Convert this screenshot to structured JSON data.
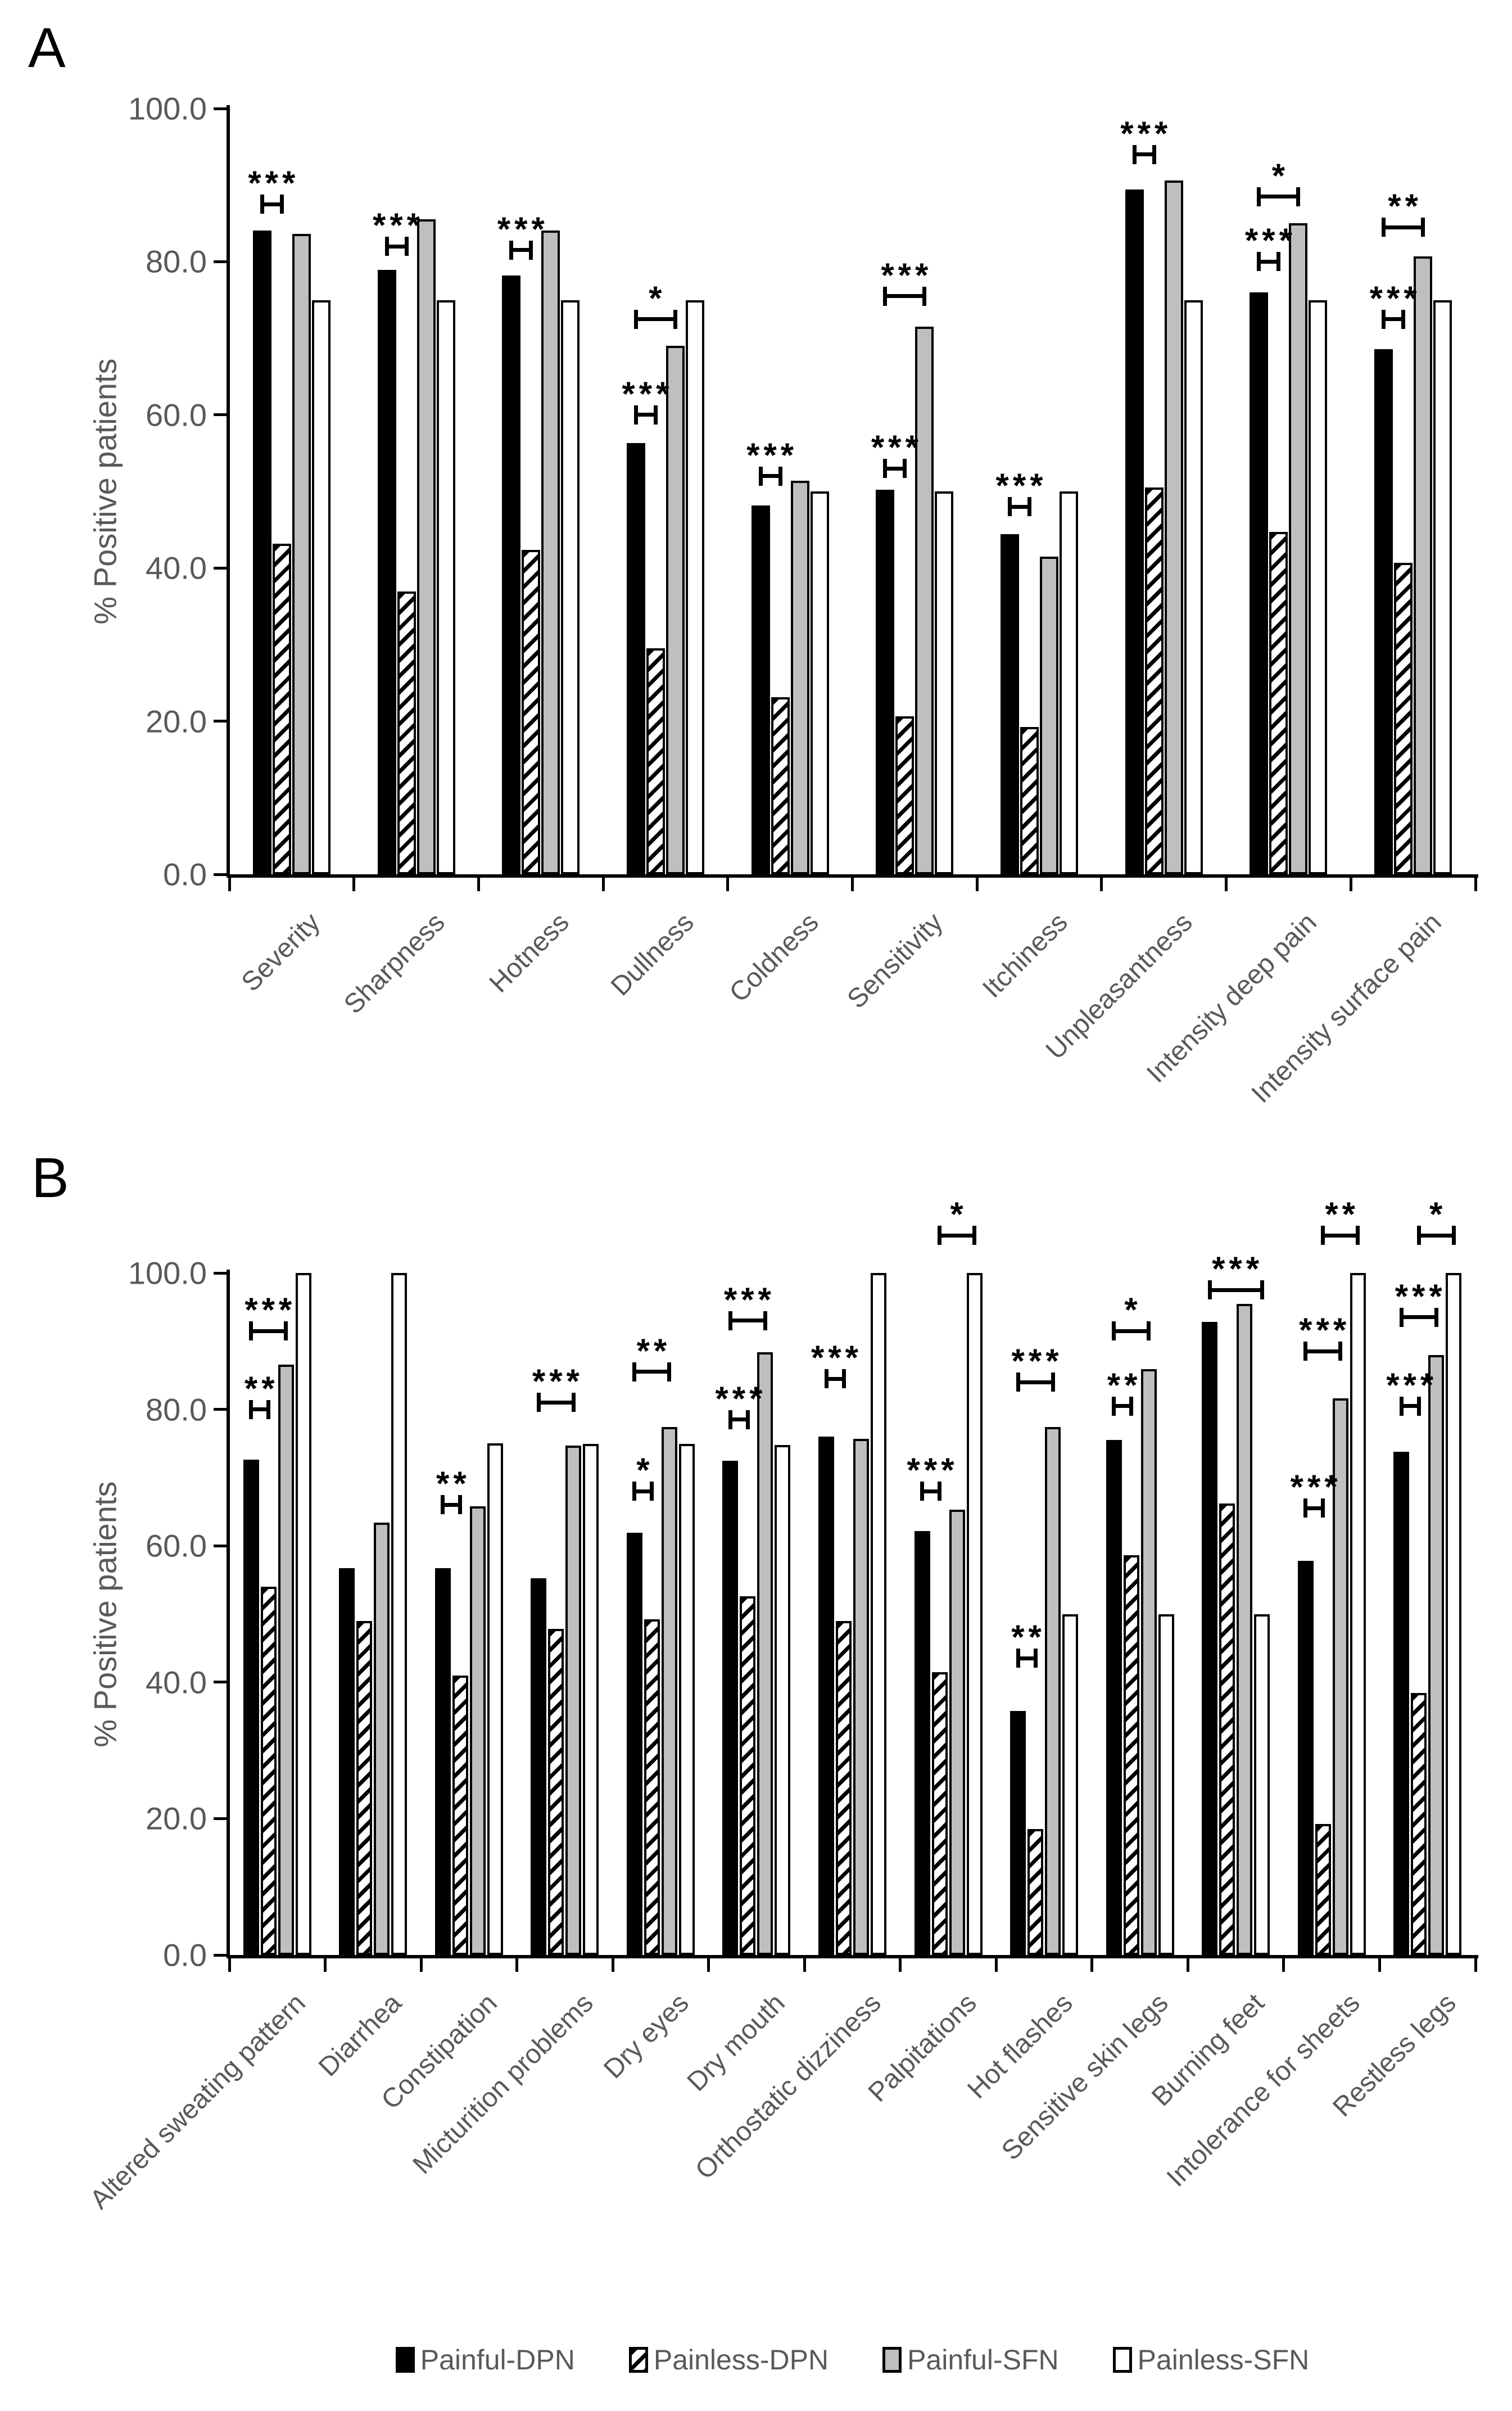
{
  "page": {
    "background": "#ffffff"
  },
  "colors": {
    "axis_text": "#595959",
    "bar_gray": "#bfbfbf",
    "bar_black": "#000000",
    "annotation": "#000000"
  },
  "legend": {
    "items": [
      {
        "label": "Painful-DPN",
        "swatch": "black"
      },
      {
        "label": "Painless-DPN",
        "swatch": "hatched"
      },
      {
        "label": "Painful-SFN",
        "swatch": "gray"
      },
      {
        "label": "Painless-SFN",
        "swatch": "white"
      }
    ]
  },
  "chart_data": [
    {
      "type": "bar",
      "panel_label": "A",
      "title": "",
      "xlabel": "",
      "ylabel": "% Positive patients",
      "ylim": [
        0,
        100
      ],
      "grid": false,
      "yticks": [
        {
          "value": 0,
          "label": "0.0"
        },
        {
          "value": 20,
          "label": "20.0"
        },
        {
          "value": 40,
          "label": "40.0"
        },
        {
          "value": 60,
          "label": "60.0"
        },
        {
          "value": 80,
          "label": "80.0"
        },
        {
          "value": 100,
          "label": "100.0"
        }
      ],
      "series": [
        "Painful-DPN",
        "Painless-DPN",
        "Painful-SFN",
        "Painless-SFN"
      ],
      "categories": [
        "Severity",
        "Sharpness",
        "Hotness",
        "Dullness",
        "Coldness",
        "Sensitivity",
        "Itchiness",
        "Unpleasantness",
        "Intensity deep pain",
        "Intensity surface pain"
      ],
      "values": [
        [
          84.1,
          43.2,
          83.6,
          75.0
        ],
        [
          78.9,
          36.9,
          85.5,
          75.0
        ],
        [
          78.2,
          42.4,
          84.1,
          75.0
        ],
        [
          56.3,
          29.5,
          69.0,
          75.0
        ],
        [
          48.2,
          23.1,
          51.4,
          50.0
        ],
        [
          50.2,
          20.6,
          71.5,
          50.0
        ],
        [
          44.4,
          19.2,
          41.5,
          50.0
        ],
        [
          89.4,
          50.5,
          90.6,
          75.0
        ],
        [
          76.0,
          44.7,
          85.0,
          75.0
        ],
        [
          68.6,
          40.7,
          80.7,
          75.0
        ]
      ],
      "significance": [
        {
          "category": "Severity",
          "pair": [
            0,
            1
          ],
          "label": "***",
          "y": 87.5
        },
        {
          "category": "Sharpness",
          "pair": [
            0,
            1
          ],
          "label": "***",
          "y": 82.0
        },
        {
          "category": "Hotness",
          "pair": [
            0,
            1
          ],
          "label": "***",
          "y": 81.5
        },
        {
          "category": "Dullness",
          "pair": [
            0,
            1
          ],
          "label": "***",
          "y": 60.0
        },
        {
          "category": "Dullness",
          "pair": [
            0,
            2
          ],
          "label": "*",
          "y": 72.5
        },
        {
          "category": "Coldness",
          "pair": [
            0,
            1
          ],
          "label": "***",
          "y": 52.0
        },
        {
          "category": "Sensitivity",
          "pair": [
            0,
            1
          ],
          "label": "***",
          "y": 53.0
        },
        {
          "category": "Sensitivity",
          "pair": [
            0,
            2
          ],
          "label": "***",
          "y": 75.5
        },
        {
          "category": "Itchiness",
          "pair": [
            0,
            1
          ],
          "label": "***",
          "y": 48.0
        },
        {
          "category": "Unpleasantness",
          "pair": [
            0,
            1
          ],
          "label": "***",
          "y": 94.0
        },
        {
          "category": "Intensity deep pain",
          "pair": [
            0,
            1
          ],
          "label": "***",
          "y": 80.0
        },
        {
          "category": "Intensity deep pain",
          "pair": [
            0,
            2
          ],
          "label": "*",
          "y": 88.5
        },
        {
          "category": "Intensity surface pain",
          "pair": [
            0,
            1
          ],
          "label": "***",
          "y": 72.5
        },
        {
          "category": "Intensity surface pain",
          "pair": [
            0,
            2
          ],
          "label": "**",
          "y": 84.5
        }
      ]
    },
    {
      "type": "bar",
      "panel_label": "B",
      "title": "",
      "xlabel": "",
      "ylabel": "% Positive patients",
      "ylim": [
        0,
        100
      ],
      "grid": false,
      "yticks": [
        {
          "value": 0,
          "label": "0.0"
        },
        {
          "value": 20,
          "label": "20.0"
        },
        {
          "value": 40,
          "label": "40.0"
        },
        {
          "value": 60,
          "label": "60.0"
        },
        {
          "value": 80,
          "label": "80.0"
        },
        {
          "value": 100,
          "label": "100.0"
        }
      ],
      "series": [
        "Painful-DPN",
        "Painless-DPN",
        "Painful-SFN",
        "Painless-SFN"
      ],
      "categories": [
        "Altered sweating pattern",
        "Diarrhea",
        "Constipation",
        "Micturition problems",
        "Dry eyes",
        "Dry mouth",
        "Orthostatic dizziness",
        "Palpitations",
        "Hot flashes",
        "Sensitive skin legs",
        "Burning feet",
        "Intolerance for sheets",
        "Restless legs"
      ],
      "values": [
        [
          72.6,
          54.0,
          86.6,
          100.0
        ],
        [
          56.7,
          49.0,
          63.4,
          100.0
        ],
        [
          56.7,
          41.0,
          65.8,
          75.0
        ],
        [
          55.2,
          47.8,
          74.7,
          74.9
        ],
        [
          61.9,
          49.2,
          77.4,
          74.9
        ],
        [
          72.5,
          52.6,
          88.4,
          74.8
        ],
        [
          76.0,
          49.0,
          75.7,
          100.0
        ],
        [
          62.2,
          41.5,
          65.3,
          100.0
        ],
        [
          35.8,
          18.5,
          77.4,
          50.0
        ],
        [
          75.5,
          58.6,
          85.9,
          50.0
        ],
        [
          92.8,
          66.2,
          95.5,
          50.0
        ],
        [
          57.8,
          19.2,
          81.6,
          100.0
        ],
        [
          73.8,
          38.4,
          88.0,
          100.0
        ]
      ],
      "significance": [
        {
          "category": "Altered sweating pattern",
          "pair": [
            0,
            1
          ],
          "label": "**",
          "y": 80.0
        },
        {
          "category": "Altered sweating pattern",
          "pair": [
            0,
            2
          ],
          "label": "***",
          "y": 91.5
        },
        {
          "category": "Constipation",
          "pair": [
            0,
            1
          ],
          "label": "**",
          "y": 66.0
        },
        {
          "category": "Micturition problems",
          "pair": [
            0,
            2
          ],
          "label": "***",
          "y": 81.0
        },
        {
          "category": "Dry eyes",
          "pair": [
            0,
            1
          ],
          "label": "*",
          "y": 68.0
        },
        {
          "category": "Dry eyes",
          "pair": [
            0,
            2
          ],
          "label": "**",
          "y": 85.5
        },
        {
          "category": "Dry mouth",
          "pair": [
            0,
            1
          ],
          "label": "***",
          "y": 78.5
        },
        {
          "category": "Dry mouth",
          "pair": [
            0,
            2
          ],
          "label": "***",
          "y": 93.0
        },
        {
          "category": "Orthostatic dizziness",
          "pair": [
            0,
            1
          ],
          "label": "***",
          "y": 84.5
        },
        {
          "category": "Palpitations",
          "pair": [
            0,
            1
          ],
          "label": "***",
          "y": 68.0
        },
        {
          "category": "Palpitations",
          "pair": [
            1,
            3
          ],
          "label": "*",
          "y": 105.5
        },
        {
          "category": "Hot flashes",
          "pair": [
            0,
            1
          ],
          "label": "**",
          "y": 43.5
        },
        {
          "category": "Hot flashes",
          "pair": [
            0,
            2
          ],
          "label": "***",
          "y": 84.0
        },
        {
          "category": "Sensitive skin legs",
          "pair": [
            0,
            1
          ],
          "label": "**",
          "y": 80.5
        },
        {
          "category": "Sensitive skin legs",
          "pair": [
            0,
            2
          ],
          "label": "*",
          "y": 91.5
        },
        {
          "category": "Burning feet",
          "pair": [
            0,
            3
          ],
          "label": "***",
          "y": 97.5
        },
        {
          "category": "Intolerance for sheets",
          "pair": [
            0,
            1
          ],
          "label": "***",
          "y": 65.5
        },
        {
          "category": "Intolerance for sheets",
          "pair": [
            0,
            2
          ],
          "label": "***",
          "y": 88.5
        },
        {
          "category": "Intolerance for sheets",
          "pair": [
            1,
            3
          ],
          "label": "**",
          "y": 105.5
        },
        {
          "category": "Restless legs",
          "pair": [
            0,
            1
          ],
          "label": "***",
          "y": 80.5
        },
        {
          "category": "Restless legs",
          "pair": [
            0,
            2
          ],
          "label": "***",
          "y": 93.5
        },
        {
          "category": "Restless legs",
          "pair": [
            1,
            3
          ],
          "label": "*",
          "y": 105.5
        }
      ]
    }
  ]
}
